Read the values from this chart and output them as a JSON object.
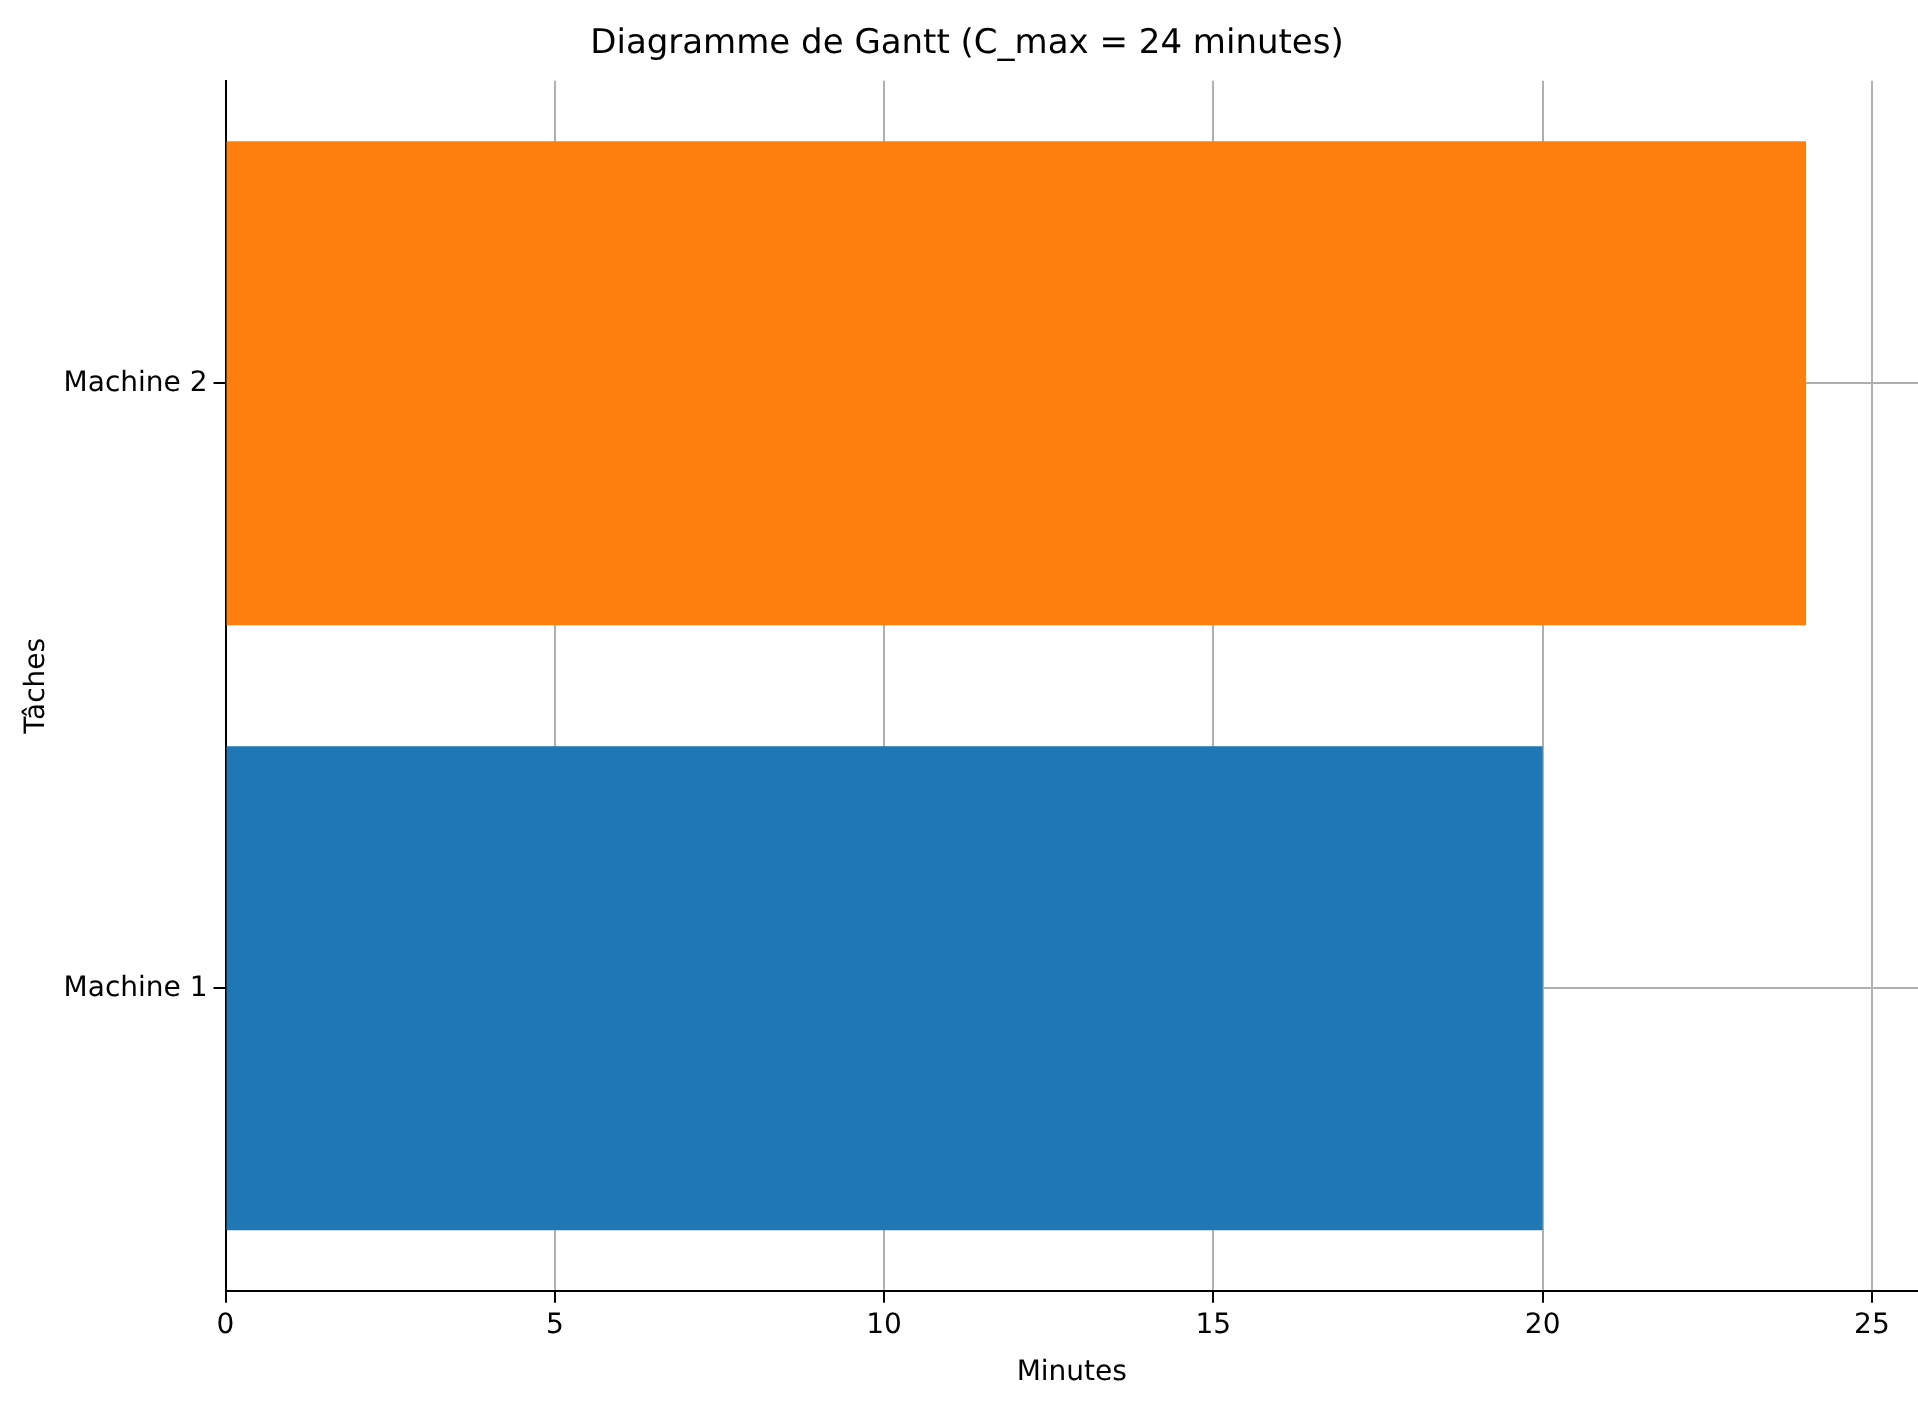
{
  "chart_data": {
    "type": "bar",
    "orientation": "horizontal",
    "title": "Diagramme de Gantt (C_max = 24 minutes)",
    "xlabel": "Minutes",
    "ylabel": "Tâches",
    "categories": [
      "Machine 2",
      "Machine 1"
    ],
    "values": [
      24,
      20
    ],
    "colors": [
      "#ff7f0e",
      "#1f77b4"
    ],
    "xlim": [
      0,
      25.7
    ],
    "xticks": [
      0,
      5,
      10,
      15,
      20,
      25
    ],
    "grid": true
  }
}
